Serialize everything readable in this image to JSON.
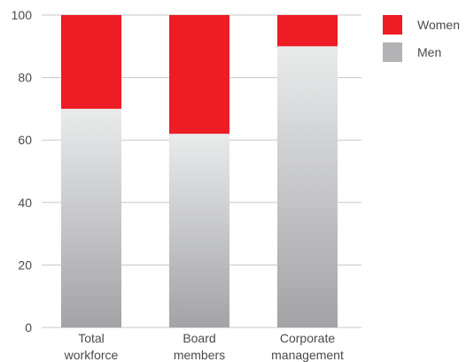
{
  "chart_data": {
    "type": "bar",
    "stacked": true,
    "categories": [
      [
        "Total",
        "workforce"
      ],
      [
        "Board",
        "members"
      ],
      [
        "Corporate",
        "management"
      ]
    ],
    "series": [
      {
        "name": "Men",
        "values": [
          70,
          62,
          90
        ],
        "color": "#b3b3b5"
      },
      {
        "name": "Women",
        "values": [
          30,
          38,
          10
        ],
        "color": "#ee1c25"
      }
    ],
    "y_ticks": [
      "0",
      "20",
      "40",
      "60",
      "80",
      "100"
    ],
    "ylim": [
      0,
      100
    ],
    "title": "",
    "xlabel": "",
    "ylabel": "",
    "grid": true,
    "legend_position": "top-right"
  },
  "legend": {
    "items": [
      {
        "label": "Women",
        "color": "#ee1c25"
      },
      {
        "label": "Men",
        "color": "#b3b3b5"
      }
    ]
  }
}
